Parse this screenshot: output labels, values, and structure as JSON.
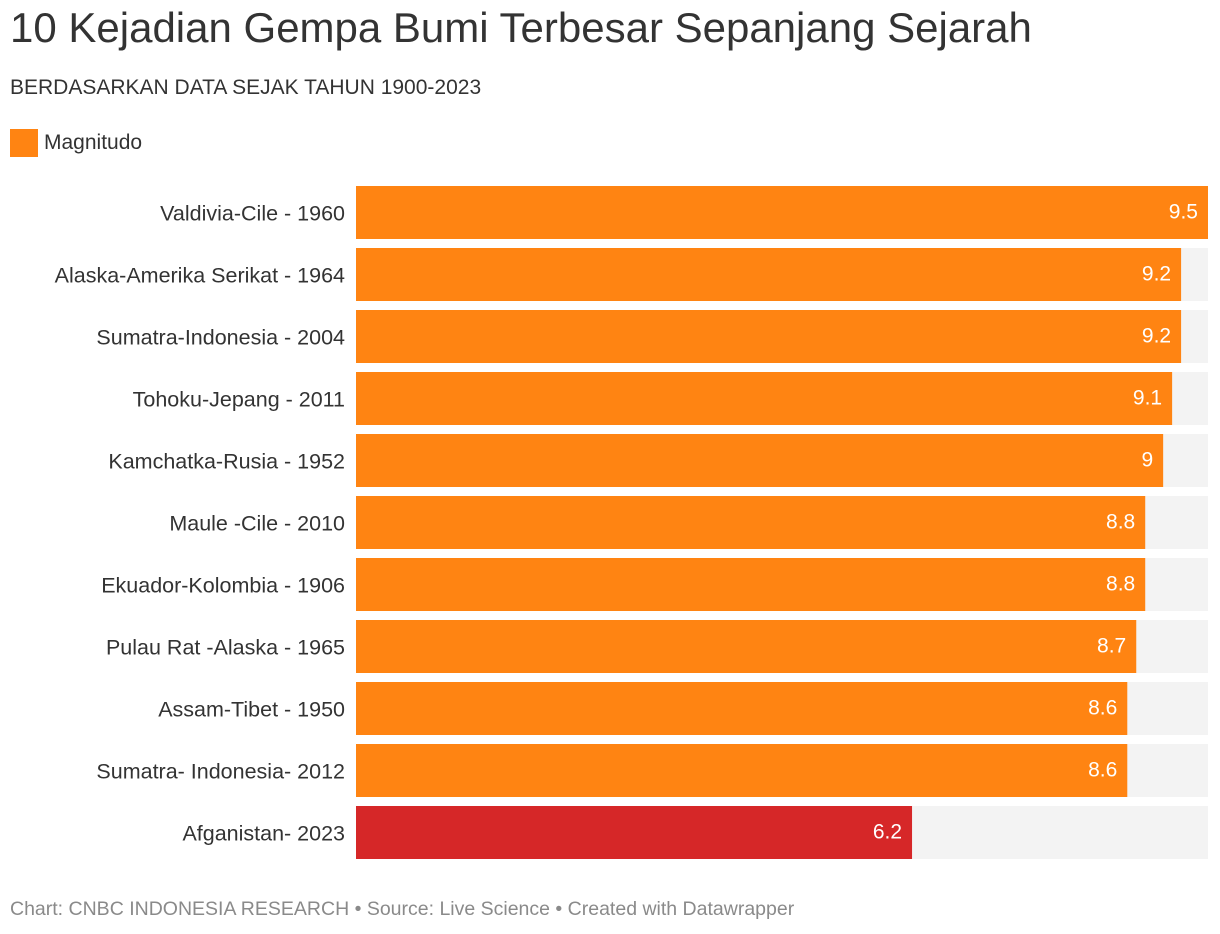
{
  "chart_data": {
    "type": "bar",
    "orientation": "horizontal",
    "title": "10 Kejadian Gempa Bumi Terbesar Sepanjang Sejarah",
    "subtitle": "BERDASARKAN DATA SEJAK TAHUN 1900-2023",
    "categories": [
      "Valdivia-Cile - 1960",
      "Alaska-Amerika Serikat - 1964",
      "Sumatra-Indonesia - 2004",
      "Tohoku-Jepang - 2011",
      "Kamchatka-Rusia - 1952",
      "Maule -Cile - 2010",
      "Ekuador-Kolombia - 1906",
      "Pulau Rat -Alaska - 1965",
      "Assam-Tibet - 1950",
      "Sumatra- Indonesia- 2012",
      "Afganistan- 2023"
    ],
    "series": [
      {
        "name": "Magnitudo",
        "values": [
          9.5,
          9.2,
          9.2,
          9.1,
          9,
          8.8,
          8.8,
          8.7,
          8.6,
          8.6,
          6.2
        ],
        "value_labels": [
          "9.5",
          "9.2",
          "9.2",
          "9.1",
          "9",
          "8.8",
          "8.8",
          "8.7",
          "8.6",
          "8.6",
          "6.2"
        ]
      }
    ],
    "xlim": [
      0,
      9.5
    ],
    "grid": false,
    "legend_position": "top-left",
    "colors": {
      "bar": "#ff8412",
      "highlight_bar": "#d62728",
      "track": "#f3f3f3",
      "value_label": "#ffffff",
      "category_label": "#333333"
    },
    "highlight_categories": [
      "Afganistan- 2023"
    ]
  },
  "footer": {
    "text": "Chart: CNBC INDONESIA RESEARCH • Source: Live Science • Created with Datawrapper"
  }
}
